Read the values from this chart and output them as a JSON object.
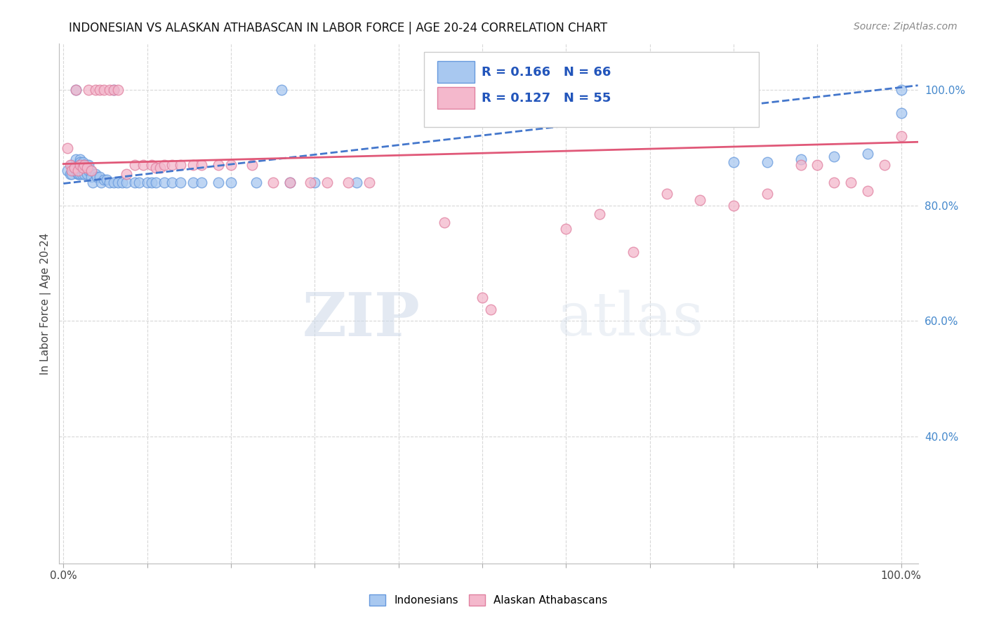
{
  "title": "INDONESIAN VS ALASKAN ATHABASCAN IN LABOR FORCE | AGE 20-24 CORRELATION CHART",
  "source": "Source: ZipAtlas.com",
  "ylabel": "In Labor Force | Age 20-24",
  "xlim": [
    -0.005,
    1.02
  ],
  "ylim": [
    0.18,
    1.08
  ],
  "y_ticks_right": [
    0.4,
    0.6,
    0.8,
    1.0
  ],
  "y_tick_labels_right": [
    "40.0%",
    "60.0%",
    "80.0%",
    "100.0%"
  ],
  "grid_color": "#d8d8d8",
  "background_color": "#ffffff",
  "blue_color": "#a8c8f0",
  "blue_edge": "#6699dd",
  "pink_color": "#f4b8cc",
  "pink_edge": "#e080a0",
  "blue_line_color": "#4477cc",
  "pink_line_color": "#e05878",
  "R_blue": 0.166,
  "N_blue": 66,
  "R_pink": 0.127,
  "N_pink": 55,
  "legend_label_blue": "Indonesians",
  "legend_label_pink": "Alaskan Athabascans",
  "watermark_zip": "ZIP",
  "watermark_atlas": "atlas",
  "blue_trend_x0": 0.0,
  "blue_trend_y0": 0.838,
  "blue_trend_x1": 1.02,
  "blue_trend_y1": 1.008,
  "pink_trend_x0": 0.0,
  "pink_trend_y0": 0.872,
  "pink_trend_x1": 1.02,
  "pink_trend_y1": 0.91,
  "blue_x": [
    0.005,
    0.008,
    0.01,
    0.01,
    0.012,
    0.013,
    0.015,
    0.015,
    0.015,
    0.017,
    0.018,
    0.018,
    0.02,
    0.02,
    0.02,
    0.02,
    0.022,
    0.022,
    0.023,
    0.023,
    0.025,
    0.025,
    0.027,
    0.028,
    0.028,
    0.03,
    0.03,
    0.032,
    0.033,
    0.035,
    0.038,
    0.04,
    0.043,
    0.045,
    0.048,
    0.052,
    0.055,
    0.06,
    0.06,
    0.065,
    0.07,
    0.075,
    0.085,
    0.09,
    0.1,
    0.105,
    0.11,
    0.12,
    0.13,
    0.14,
    0.155,
    0.165,
    0.185,
    0.2,
    0.23,
    0.26,
    0.27,
    0.3,
    0.35,
    0.8,
    0.84,
    0.88,
    0.92,
    0.96,
    1.0,
    1.0
  ],
  "blue_y": [
    0.86,
    0.855,
    0.87,
    0.855,
    0.86,
    0.865,
    1.0,
    0.88,
    0.86,
    0.855,
    0.87,
    0.855,
    0.88,
    0.875,
    0.87,
    0.855,
    0.87,
    0.855,
    0.875,
    0.86,
    0.87,
    0.855,
    0.865,
    0.87,
    0.855,
    0.87,
    0.86,
    0.86,
    0.85,
    0.84,
    0.855,
    0.85,
    0.85,
    0.84,
    0.845,
    0.845,
    0.84,
    0.84,
    1.0,
    0.84,
    0.84,
    0.84,
    0.84,
    0.84,
    0.84,
    0.84,
    0.84,
    0.84,
    0.84,
    0.84,
    0.84,
    0.84,
    0.84,
    0.84,
    0.84,
    1.0,
    0.84,
    0.84,
    0.84,
    0.875,
    0.875,
    0.88,
    0.885,
    0.89,
    0.96,
    1.0
  ],
  "pink_x": [
    0.005,
    0.008,
    0.01,
    0.013,
    0.015,
    0.017,
    0.02,
    0.023,
    0.025,
    0.028,
    0.03,
    0.033,
    0.038,
    0.043,
    0.048,
    0.055,
    0.06,
    0.065,
    0.075,
    0.085,
    0.095,
    0.105,
    0.11,
    0.115,
    0.12,
    0.13,
    0.14,
    0.155,
    0.165,
    0.185,
    0.2,
    0.225,
    0.25,
    0.27,
    0.295,
    0.315,
    0.34,
    0.365,
    0.455,
    0.5,
    0.51,
    0.6,
    0.64,
    0.68,
    0.72,
    0.76,
    0.8,
    0.84,
    0.88,
    0.9,
    0.92,
    0.94,
    0.96,
    0.98,
    1.0
  ],
  "pink_y": [
    0.9,
    0.87,
    0.86,
    0.865,
    1.0,
    0.86,
    0.87,
    0.865,
    0.87,
    0.865,
    1.0,
    0.86,
    1.0,
    1.0,
    1.0,
    1.0,
    1.0,
    1.0,
    0.855,
    0.87,
    0.87,
    0.87,
    0.865,
    0.865,
    0.87,
    0.87,
    0.87,
    0.87,
    0.87,
    0.87,
    0.87,
    0.87,
    0.84,
    0.84,
    0.84,
    0.84,
    0.84,
    0.84,
    0.77,
    0.64,
    0.62,
    0.76,
    0.785,
    0.72,
    0.82,
    0.81,
    0.8,
    0.82,
    0.87,
    0.87,
    0.84,
    0.84,
    0.825,
    0.87,
    0.92
  ]
}
